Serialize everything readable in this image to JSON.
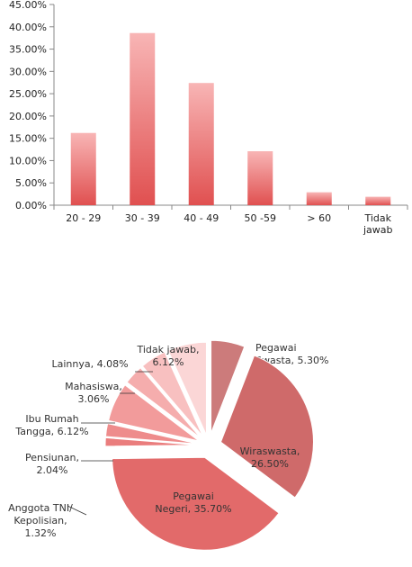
{
  "chart_data": [
    {
      "type": "bar",
      "categories": [
        "20 - 29",
        "30 - 39",
        "40 - 49",
        "50 -59",
        "> 60",
        "Tidak jawab"
      ],
      "values": [
        16.2,
        38.6,
        27.4,
        12.1,
        2.9,
        1.9
      ],
      "y_tick_labels": [
        "0.00%",
        "5.00%",
        "10.00%",
        "15.00%",
        "20.00%",
        "25.00%",
        "30.00%",
        "35.00%",
        "40.00%",
        "45.00%"
      ],
      "ylim": [
        0,
        45
      ],
      "grid": false,
      "legend": "none",
      "bar_gradient": [
        "#f8b5b5",
        "#e05050"
      ]
    },
    {
      "type": "pie",
      "slices": [
        {
          "label": "Pegawai Swasta, 5.30%",
          "value": 5.3,
          "color": "#cc7b7b"
        },
        {
          "label": "Wiraswasta, 26.50%",
          "value": 26.5,
          "color": "#cf6a6a"
        },
        {
          "label": "Pegawai Negeri, 35.70%",
          "value": 35.7,
          "color": "#e26a6a"
        },
        {
          "label": "Anggota TNI/ Kepolisian, 1.32%",
          "value": 1.32,
          "color": "#ea7d7d"
        },
        {
          "label": "Pensiunan, 2.04%",
          "value": 2.04,
          "color": "#ee8c8c"
        },
        {
          "label": "Ibu Rumah Tangga, 6.12%",
          "value": 6.12,
          "color": "#f29b9b"
        },
        {
          "label": "Mahasiswa, 3.06%",
          "value": 3.06,
          "color": "#f5adad"
        },
        {
          "label": "Lainnya, 4.08%",
          "value": 4.08,
          "color": "#f8c0c0"
        },
        {
          "label": "Tidak jawab, 6.12%",
          "value": 6.12,
          "color": "#fbd6d6"
        }
      ],
      "legend": "none"
    }
  ]
}
